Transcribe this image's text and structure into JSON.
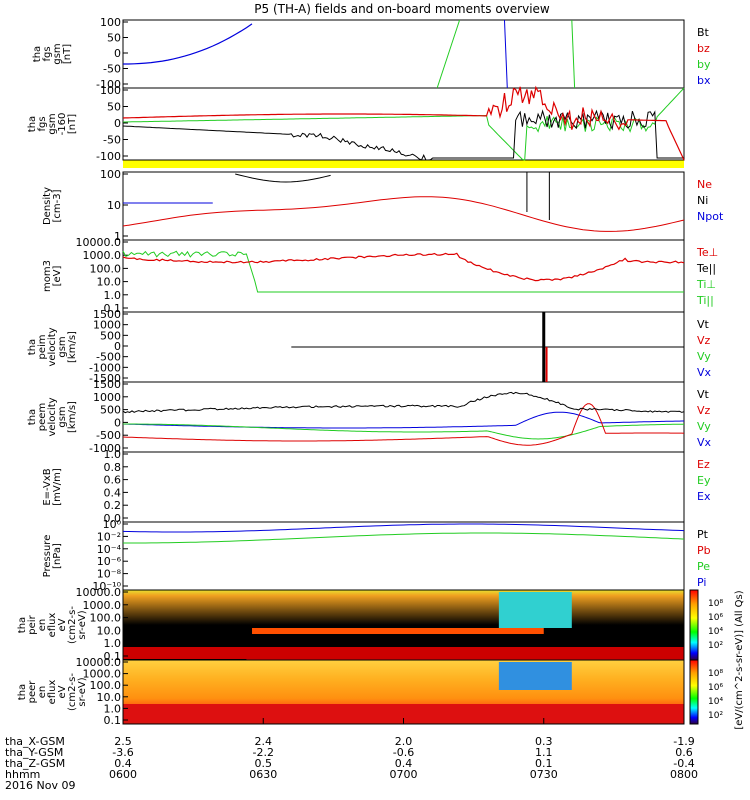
{
  "title": "P5 (TH-A) fields and on-board moments overview",
  "colors": {
    "black": "#000000",
    "red": "#dd0000",
    "green": "#22cc22",
    "blue": "#0000dd",
    "yellow": "#ffff00"
  },
  "chart_data": {
    "type": "line",
    "x_ticks": [
      "0600",
      "0630",
      "0700",
      "0730",
      "0800"
    ],
    "ephemeris": {
      "labels": [
        "tha_X-GSM",
        "tha_Y-GSM",
        "tha_Z-GSM",
        "hhmm"
      ],
      "X": [
        "2.5",
        "2.4",
        "2.0",
        "0.3",
        "-1.9"
      ],
      "Y": [
        "-3.6",
        "-2.2",
        "-0.6",
        "1.1",
        "0.6"
      ],
      "Z": [
        "0.4",
        "0.5",
        "0.4",
        "0.1",
        "-0.4"
      ],
      "hhmm": [
        "0600",
        "0630",
        "0700",
        "0730",
        "0800"
      ],
      "date": "2016 Nov 09"
    },
    "panels": [
      {
        "ylabel": [
          "tha",
          "fgs",
          "gsm",
          "[nT]"
        ],
        "ticks": [
          "100",
          "50",
          "0",
          "-50",
          "-100"
        ],
        "legend": [
          {
            "t": "Bt",
            "c": "black"
          },
          {
            "t": "bz",
            "c": "red"
          },
          {
            "t": "by",
            "c": "green"
          },
          {
            "t": "bx",
            "c": "blue"
          }
        ]
      },
      {
        "ylabel": [
          "tha",
          "fgs",
          "gsm",
          "-160",
          "[nT]"
        ],
        "ticks": [
          "100",
          "50",
          "0",
          "-50",
          "-100"
        ],
        "legend": []
      },
      {
        "ylabel": [
          "Density",
          "[cm-3]"
        ],
        "ticks": [
          "100",
          "10",
          "1"
        ],
        "legend": [
          {
            "t": "Ne",
            "c": "red"
          },
          {
            "t": "Ni",
            "c": "black"
          },
          {
            "t": "Npot",
            "c": "blue"
          }
        ]
      },
      {
        "ylabel": [
          "mom3",
          "[eV]"
        ],
        "ticks": [
          "10000.0",
          "1000.0",
          "100.0",
          "10.0",
          "1.0",
          "0.1"
        ],
        "legend": [
          {
            "t": "Te⊥",
            "c": "red"
          },
          {
            "t": "Te||",
            "c": "black"
          },
          {
            "t": "Ti⊥",
            "c": "green"
          },
          {
            "t": "Ti||",
            "c": "green"
          }
        ]
      },
      {
        "ylabel": [
          "tha",
          "peim",
          "velocity",
          "gsm",
          "[km/s]"
        ],
        "ticks": [
          "1500",
          "1000",
          "500",
          "0",
          "-500",
          "-1000",
          "-1500"
        ],
        "legend": [
          {
            "t": "Vt",
            "c": "black"
          },
          {
            "t": "Vz",
            "c": "red"
          },
          {
            "t": "Vy",
            "c": "green"
          },
          {
            "t": "Vx",
            "c": "blue"
          }
        ]
      },
      {
        "ylabel": [
          "tha",
          "peem",
          "velocity",
          "gsm",
          "[km/s]"
        ],
        "ticks": [
          "1500",
          "1000",
          "500",
          "0",
          "-500",
          "-1000"
        ],
        "legend": [
          {
            "t": "Vt",
            "c": "black"
          },
          {
            "t": "Vz",
            "c": "red"
          },
          {
            "t": "Vy",
            "c": "green"
          },
          {
            "t": "Vx",
            "c": "blue"
          }
        ]
      },
      {
        "ylabel": [
          "E=-VxB",
          "[mV/m]"
        ],
        "ticks": [
          "1.0",
          "0.8",
          "0.6",
          "0.4",
          "0.2",
          "0.0"
        ],
        "legend": [
          {
            "t": "Ez",
            "c": "red"
          },
          {
            "t": "Ey",
            "c": "green"
          },
          {
            "t": "Ex",
            "c": "blue"
          }
        ]
      },
      {
        "ylabel": [
          "Pressure",
          "[nPa]"
        ],
        "ticks": [
          "10⁰",
          "10⁻²",
          "10⁻⁴",
          "10⁻⁶",
          "10⁻⁸",
          "10⁻¹⁰"
        ],
        "legend": [
          {
            "t": "Pt",
            "c": "black"
          },
          {
            "t": "Pb",
            "c": "red"
          },
          {
            "t": "Pe",
            "c": "green"
          },
          {
            "t": "Pi",
            "c": "blue"
          }
        ]
      },
      {
        "ylabel": [
          "tha",
          "peir",
          "en",
          "eflux",
          "eV",
          "(cm2-s-",
          "sr-eV)"
        ],
        "ticks": [
          "10000.0",
          "1000.0",
          "100.0",
          "10.0",
          "1.0",
          "0.1"
        ],
        "legend": []
      },
      {
        "ylabel": [
          "tha",
          "peer",
          "en",
          "eflux",
          "eV",
          "(cm2-s-",
          "sr-eV)"
        ],
        "ticks": [
          "10000.0",
          "1000.0",
          "100.0",
          "10.0",
          "1.0",
          "0.1"
        ],
        "legend": []
      }
    ],
    "colorbar_label": "[eV/(cm^2-s-sr-eV)] (All Qs)",
    "colorbar_ticks": [
      "10⁸",
      "10⁶",
      "10⁴",
      "10²"
    ]
  }
}
